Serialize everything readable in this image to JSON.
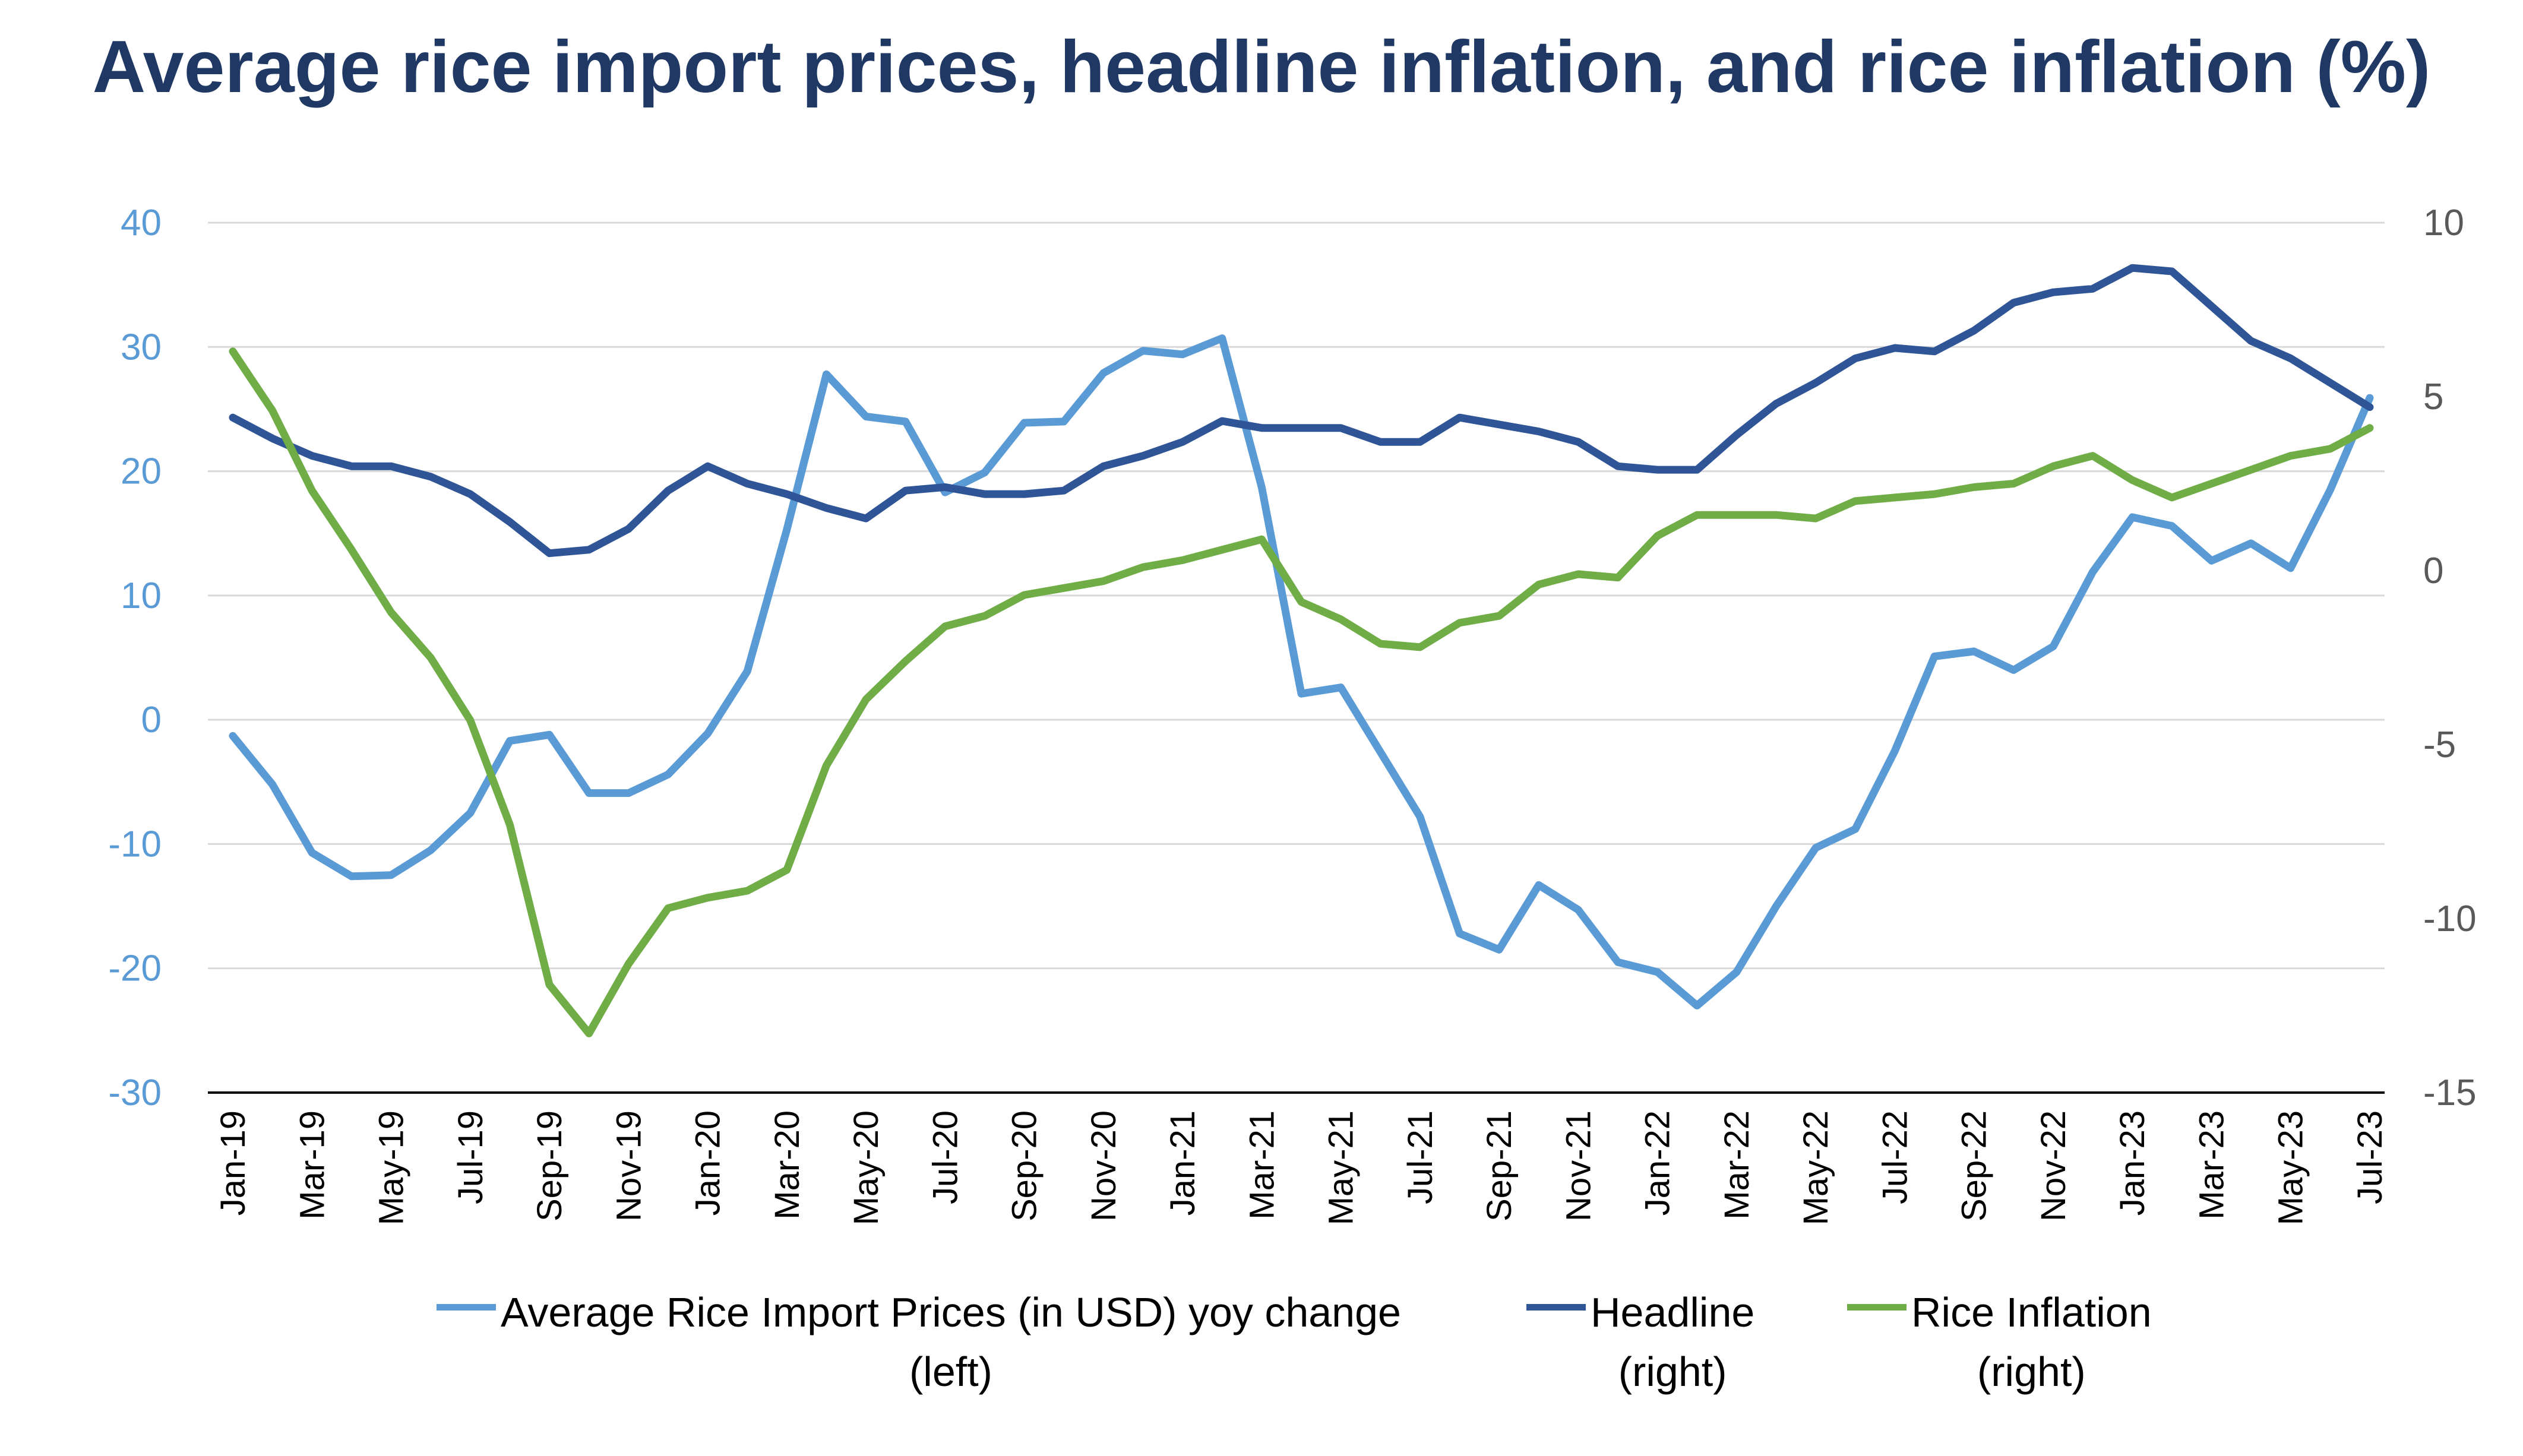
{
  "chart_data": {
    "type": "line",
    "title": "Average rice import prices, headline inflation, and rice inflation (%)",
    "x": [
      "Jan-19",
      "Feb-19",
      "Mar-19",
      "Apr-19",
      "May-19",
      "Jun-19",
      "Jul-19",
      "Aug-19",
      "Sep-19",
      "Oct-19",
      "Nov-19",
      "Dec-19",
      "Jan-20",
      "Feb-20",
      "Mar-20",
      "Apr-20",
      "May-20",
      "Jun-20",
      "Jul-20",
      "Aug-20",
      "Sep-20",
      "Oct-20",
      "Nov-20",
      "Dec-20",
      "Jan-21",
      "Feb-21",
      "Mar-21",
      "Apr-21",
      "May-21",
      "Jun-21",
      "Jul-21",
      "Aug-21",
      "Sep-21",
      "Oct-21",
      "Nov-21",
      "Dec-21",
      "Jan-22",
      "Feb-22",
      "Mar-22",
      "Apr-22",
      "May-22",
      "Jun-22",
      "Jul-22",
      "Aug-22",
      "Sep-22",
      "Oct-22",
      "Nov-22",
      "Dec-22",
      "Jan-23",
      "Feb-23",
      "Mar-23",
      "Apr-23",
      "May-23",
      "Jun-23",
      "Jul-23"
    ],
    "x_tick_labels": [
      "Jan-19",
      "Mar-19",
      "May-19",
      "Jul-19",
      "Sep-19",
      "Nov-19",
      "Jan-20",
      "Mar-20",
      "May-20",
      "Jul-20",
      "Sep-20",
      "Nov-20",
      "Jan-21",
      "Mar-21",
      "May-21",
      "Jul-21",
      "Sep-21",
      "Nov-21",
      "Jan-22",
      "Mar-22",
      "May-22",
      "Jul-22",
      "Sep-22",
      "Nov-22",
      "Jan-23",
      "Mar-23",
      "May-23",
      "Jul-23"
    ],
    "y_left": {
      "ylim": [
        -30,
        40
      ],
      "ticks": [
        "40",
        "30",
        "20",
        "10",
        "0",
        "-10",
        "-20",
        "-30"
      ]
    },
    "y_right": {
      "ylim": [
        -15,
        10
      ],
      "ticks": [
        "10",
        "5",
        "0",
        "-5",
        "-10",
        "-15"
      ]
    },
    "grid": true,
    "legend_position": "bottom",
    "series": [
      {
        "name": "Average Rice Import Prices (in USD) yoy change",
        "axis_label": "(left)",
        "axis": "left",
        "color": "#5B9BD5",
        "values": [
          -1.3,
          -5.2,
          -10.7,
          -12.6,
          -12.5,
          -10.5,
          -7.5,
          -1.7,
          -1.2,
          -5.9,
          -5.9,
          -4.4,
          -1.1,
          3.9,
          15.3,
          27.8,
          24.4,
          24.0,
          18.3,
          19.9,
          23.9,
          24.0,
          27.9,
          29.7,
          29.4,
          30.7,
          18.7,
          2.1,
          2.6,
          -2.6,
          -7.8,
          -17.2,
          -18.5,
          -13.3,
          -15.3,
          -19.5,
          -20.3,
          -23.0,
          -20.3,
          -15.0,
          -10.3,
          -8.8,
          -2.5,
          5.1,
          5.5,
          4.0,
          5.9,
          11.9,
          16.3,
          15.6,
          12.8,
          14.2,
          12.2,
          18.5,
          25.9
        ]
      },
      {
        "name": "Headline",
        "axis_label": "(right)",
        "axis": "right",
        "color": "#2F5597",
        "values": [
          4.4,
          3.8,
          3.3,
          3.0,
          3.0,
          2.7,
          2.2,
          1.4,
          0.5,
          0.6,
          1.2,
          2.3,
          3.0,
          2.5,
          2.2,
          1.8,
          1.5,
          2.3,
          2.4,
          2.2,
          2.2,
          2.3,
          3.0,
          3.3,
          3.7,
          4.3,
          4.1,
          4.1,
          4.1,
          3.7,
          3.7,
          4.4,
          4.2,
          4.0,
          3.7,
          3.0,
          2.9,
          2.9,
          3.9,
          4.8,
          5.4,
          6.1,
          6.4,
          6.3,
          6.9,
          7.7,
          8.0,
          8.1,
          8.7,
          8.6,
          7.6,
          6.6,
          6.1,
          5.4,
          4.7
        ]
      },
      {
        "name": "Rice Inflation",
        "axis_label": "(right)",
        "axis": "right",
        "color": "#70AD47",
        "values": [
          6.3,
          4.6,
          2.3,
          0.6,
          -1.2,
          -2.5,
          -4.3,
          -7.3,
          -11.9,
          -13.3,
          -11.3,
          -9.7,
          -9.4,
          -9.2,
          -8.6,
          -5.6,
          -3.7,
          -2.6,
          -1.6,
          -1.3,
          -0.7,
          -0.5,
          -0.3,
          0.1,
          0.3,
          0.6,
          0.9,
          -0.9,
          -1.4,
          -2.1,
          -2.2,
          -1.5,
          -1.3,
          -0.4,
          -0.1,
          -0.2,
          1.0,
          1.6,
          1.6,
          1.6,
          1.5,
          2.0,
          2.1,
          2.2,
          2.4,
          2.5,
          3.0,
          3.3,
          2.6,
          2.1,
          2.5,
          2.9,
          3.3,
          3.5,
          4.1
        ]
      }
    ]
  }
}
